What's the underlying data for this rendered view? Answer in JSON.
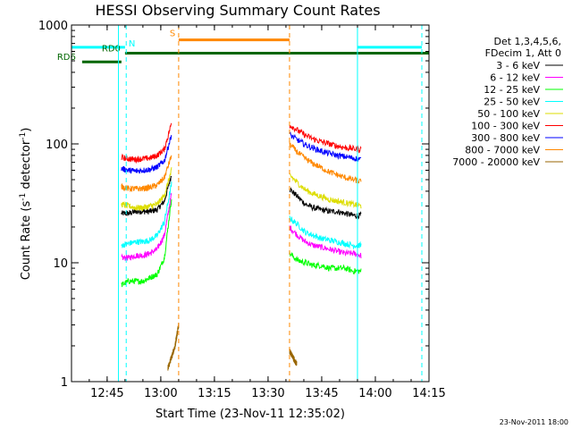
{
  "chart_data": {
    "type": "line",
    "title": "HESSI Observing Summary Count Rates",
    "xlabel": "Start Time (23-Nov-11 12:35:02)",
    "ylabel_main": "Count Rate (s",
    "ylabel_sup1": "-1",
    "ylabel_mid": " detector",
    "ylabel_sup2": "-1",
    "ylabel_end": ")",
    "y_scale": "log",
    "ylim": [
      1,
      1000
    ],
    "xlim": [
      "12:35:02",
      "14:15:00"
    ],
    "x_ticks": [
      "12:45",
      "13:00",
      "13:15",
      "13:30",
      "13:45",
      "14:00",
      "14:15"
    ],
    "y_ticks": [
      "1",
      "10",
      "100",
      "1000"
    ],
    "grid": false,
    "legend_position": "right",
    "legend_header": [
      "Det 1,3,4,5,6,",
      "FDecim 1, Att 0"
    ],
    "timestamp": "23-Nov-2011 18:00",
    "series": [
      {
        "name": "3 - 6 keV",
        "color": "#000000",
        "segments": [
          {
            "start": "12:49",
            "end": "13:03",
            "values": [
              26,
              26,
              27,
              27,
              27,
              28,
              33,
              55
            ]
          },
          {
            "start": "13:36",
            "end": "13:56",
            "values": [
              42,
              36,
              31,
              29,
              28,
              27,
              27,
              26,
              25,
              25
            ]
          }
        ]
      },
      {
        "name": "6 - 12 keV",
        "color": "#ff00ff",
        "segments": [
          {
            "start": "12:49",
            "end": "13:03",
            "values": [
              11,
              11,
              11.5,
              11.5,
              12,
              13,
              17,
              38
            ]
          },
          {
            "start": "13:36",
            "end": "13:56",
            "values": [
              20,
              17,
              15,
              14,
              13.5,
              13,
              12.5,
              12,
              12,
              11.5
            ]
          }
        ]
      },
      {
        "name": "12 - 25 keV",
        "color": "#00ff00",
        "segments": [
          {
            "start": "12:49",
            "end": "13:03",
            "values": [
              6.5,
              7,
              7,
              7,
              7.5,
              8,
              11,
              35
            ]
          },
          {
            "start": "13:36",
            "end": "13:56",
            "values": [
              12,
              10.5,
              10,
              9.5,
              9.5,
              9,
              9,
              9,
              8.5,
              8.5
            ]
          }
        ]
      },
      {
        "name": "25 - 50 keV",
        "color": "#00ffff",
        "segments": [
          {
            "start": "12:49",
            "end": "13:03",
            "values": [
              14,
              14.5,
              15,
              15,
              15.5,
              17,
              22,
              46
            ]
          },
          {
            "start": "13:36",
            "end": "13:56",
            "values": [
              24,
              21,
              18,
              17,
              16,
              15.5,
              15,
              14.5,
              14,
              14
            ]
          }
        ]
      },
      {
        "name": "50 - 100 keV",
        "color": "#dddd00",
        "segments": [
          {
            "start": "12:49",
            "end": "13:03",
            "values": [
              31,
              30,
              29,
              29,
              30,
              31,
              37,
              60
            ]
          },
          {
            "start": "13:36",
            "end": "13:56",
            "values": [
              55,
              47,
              41,
              38,
              36,
              34,
              33,
              32,
              31,
              30
            ]
          }
        ]
      },
      {
        "name": "100 - 300 keV",
        "color": "#ff0000",
        "segments": [
          {
            "start": "12:49",
            "end": "13:03",
            "values": [
              77,
              75,
              74,
              75,
              76,
              80,
              90,
              150
            ]
          },
          {
            "start": "13:36",
            "end": "13:56",
            "values": [
              145,
              130,
              118,
              110,
              104,
              100,
              96,
              93,
              91,
              90
            ]
          }
        ]
      },
      {
        "name": "300 - 800 keV",
        "color": "#0000ff",
        "segments": [
          {
            "start": "12:49",
            "end": "13:03",
            "values": [
              62,
              60,
              59,
              60,
              61,
              64,
              72,
              120
            ]
          },
          {
            "start": "13:36",
            "end": "13:56",
            "values": [
              120,
              108,
              98,
              92,
              87,
              83,
              80,
              78,
              76,
              74
            ]
          }
        ]
      },
      {
        "name": "800 - 7000 keV",
        "color": "#ff8800",
        "segments": [
          {
            "start": "12:49",
            "end": "13:03",
            "values": [
              44,
              42,
              42,
              42,
              43,
              45,
              52,
              80
            ]
          },
          {
            "start": "13:36",
            "end": "13:56",
            "values": [
              100,
              85,
              75,
              68,
              63,
              58,
              55,
              52,
              50,
              48
            ]
          }
        ]
      },
      {
        "name": "7000 - 20000 keV",
        "color": "#996600",
        "segments": [
          {
            "start": "13:02",
            "end": "13:05",
            "values": [
              1.3,
              1.6,
              2,
              3
            ]
          },
          {
            "start": "13:36",
            "end": "13:38",
            "values": [
              1.8,
              1.6,
              1.4
            ]
          }
        ]
      }
    ],
    "flag_bars": [
      {
        "label": "N",
        "color": "#00ffff",
        "ranges": [
          [
            "12:35:02",
            "12:50"
          ],
          [
            "13:55",
            "14:13"
          ]
        ],
        "y": 650
      },
      {
        "label": "S",
        "color": "#ff8800",
        "ranges": [
          [
            "13:05",
            "13:36"
          ]
        ],
        "y": 750
      },
      {
        "label": "RD0",
        "color": "#006600",
        "ranges": [
          [
            "12:50",
            "14:15"
          ]
        ],
        "y": 580
      },
      {
        "label": "RD6",
        "color": "#006600",
        "ranges": [
          [
            "12:38",
            "12:49"
          ]
        ],
        "y": 490
      }
    ],
    "markers": [
      {
        "time": "12:48:10",
        "color": "#00ffff",
        "style": "solid"
      },
      {
        "time": "12:50:20",
        "color": "#00ffff",
        "style": "dashed"
      },
      {
        "time": "13:05",
        "color": "#ff8800",
        "style": "dashed"
      },
      {
        "time": "13:36",
        "color": "#ff8800",
        "style": "dashed"
      },
      {
        "time": "13:55",
        "color": "#00ffff",
        "style": "solid"
      },
      {
        "time": "14:13",
        "color": "#00ffff",
        "style": "dashed"
      }
    ]
  }
}
